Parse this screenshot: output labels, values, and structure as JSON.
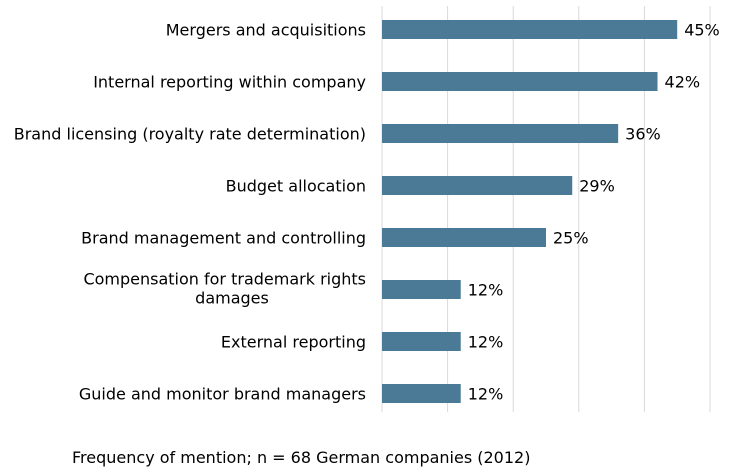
{
  "chart_data": {
    "type": "bar",
    "orientation": "horizontal",
    "categories": [
      "Mergers and acquisitions",
      "Internal reporting within company",
      "Brand licensing (royalty rate determination)",
      "Budget allocation",
      "Brand management and controlling",
      "Compensation for trademark rights damages",
      "External reporting",
      "Guide and monitor brand managers"
    ],
    "values": [
      45,
      42,
      36,
      29,
      25,
      12,
      12,
      12
    ],
    "value_labels": [
      "45%",
      "42%",
      "36%",
      "29%",
      "25%",
      "12%",
      "12%",
      "12%"
    ],
    "xlabel": "Frequency of mention; n = 68 German companies (2012)",
    "xlim": [
      0,
      50
    ],
    "grid": true,
    "bar_color": "#4a7a95",
    "gridline_color": "#d9d9d9"
  }
}
